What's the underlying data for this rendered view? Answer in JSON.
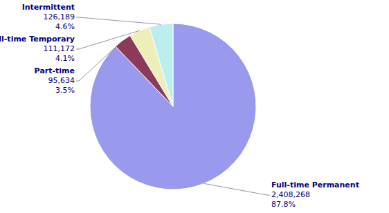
{
  "chart_data": {
    "type": "pie",
    "categories": [
      "Full-time Permanent",
      "Part-time",
      "Full-time Temporary",
      "Intermittent"
    ],
    "values": [
      2408268,
      95634,
      111172,
      126189
    ],
    "value_labels": [
      "2,408,268",
      "95,634",
      "111,172",
      "126,189"
    ],
    "percents": [
      87.8,
      3.5,
      4.1,
      4.6
    ],
    "percent_labels": [
      "87.8%",
      "3.5%",
      "4.1%",
      "4.6%"
    ],
    "colors": [
      "#9999ee",
      "#8b3a5a",
      "#eeeebb",
      "#bbeeee"
    ]
  }
}
